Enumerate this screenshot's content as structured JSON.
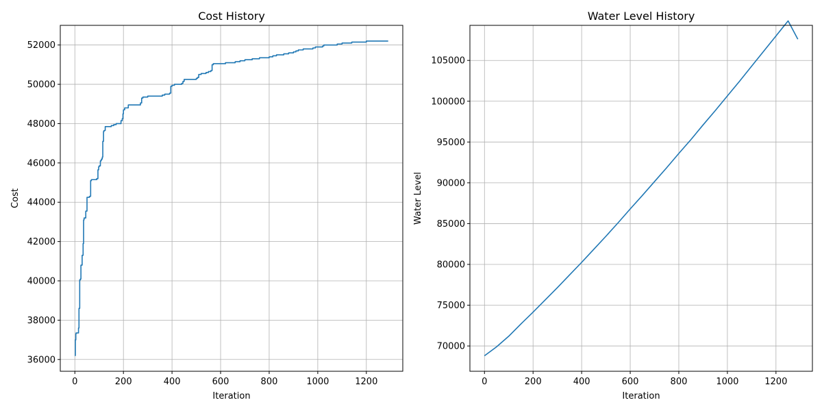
{
  "chart_data": [
    {
      "type": "line",
      "title": "Cost History",
      "xlabel": "Iteration",
      "ylabel": "Cost",
      "xlim": [
        -60,
        1350
      ],
      "ylim": [
        35400,
        53000
      ],
      "xticks": [
        0,
        200,
        400,
        600,
        800,
        1000,
        1200
      ],
      "yticks": [
        36000,
        38000,
        40000,
        42000,
        44000,
        46000,
        48000,
        50000,
        52000
      ],
      "grid": true,
      "line_color": "#1f77b4",
      "series": [
        {
          "x": [
            0,
            2,
            4,
            5,
            10,
            15,
            17,
            20,
            23,
            25,
            28,
            30,
            34,
            36,
            38,
            40,
            45,
            50,
            55,
            60,
            65,
            68,
            70,
            80,
            90,
            95,
            98,
            100,
            105,
            108,
            110,
            113,
            115,
            118,
            120,
            122,
            125,
            130,
            140,
            150,
            160,
            165,
            170,
            180,
            190,
            195,
            198,
            200,
            205,
            210,
            220,
            230,
            240,
            250,
            260,
            270,
            275,
            280,
            290,
            300,
            310,
            330,
            360,
            370,
            380,
            390,
            395,
            400,
            410,
            420,
            440,
            445,
            450,
            460,
            470,
            480,
            500,
            505,
            510,
            520,
            530,
            540,
            550,
            560,
            565,
            570,
            600,
            620,
            660,
            680,
            700,
            720,
            730,
            760,
            800,
            815,
            830,
            850,
            860,
            880,
            900,
            910,
            920,
            940,
            980,
            990,
            1020,
            1025,
            1040,
            1080,
            1100,
            1110,
            1140,
            1160,
            1190,
            1200,
            1250,
            1290
          ],
          "y": [
            36200,
            37000,
            37300,
            37350,
            37350,
            37600,
            38600,
            40050,
            40100,
            40800,
            40800,
            41300,
            41900,
            43100,
            43200,
            43200,
            43550,
            44250,
            44250,
            44300,
            45100,
            45150,
            45150,
            45150,
            45200,
            45650,
            45800,
            45850,
            46100,
            46150,
            46200,
            46300,
            47100,
            47600,
            47650,
            47650,
            47850,
            47850,
            47850,
            47900,
            47950,
            47950,
            48000,
            48000,
            48150,
            48250,
            48500,
            48700,
            48800,
            48800,
            48950,
            48950,
            48950,
            48950,
            48950,
            49050,
            49300,
            49350,
            49350,
            49400,
            49400,
            49400,
            49450,
            49500,
            49500,
            49550,
            49900,
            49950,
            50000,
            50000,
            50050,
            50150,
            50250,
            50250,
            50250,
            50250,
            50300,
            50350,
            50500,
            50550,
            50550,
            50600,
            50650,
            50700,
            51000,
            51050,
            51050,
            51100,
            51150,
            51200,
            51250,
            51250,
            51300,
            51350,
            51400,
            51450,
            51500,
            51500,
            51550,
            51600,
            51650,
            51700,
            51750,
            51800,
            51850,
            51900,
            51950,
            52000,
            52000,
            52050,
            52100,
            52100,
            52150,
            52150,
            52150,
            52200,
            52200,
            52200
          ]
        }
      ]
    },
    {
      "type": "line",
      "title": "Water Level History",
      "xlabel": "Iteration",
      "ylabel": "Water Level",
      "xlim": [
        -60,
        1350
      ],
      "ylim": [
        66900,
        109300
      ],
      "xticks": [
        0,
        200,
        400,
        600,
        800,
        1000,
        1200
      ],
      "yticks": [
        70000,
        75000,
        80000,
        85000,
        90000,
        95000,
        100000,
        105000
      ],
      "grid": true,
      "line_color": "#1f77b4",
      "series": [
        {
          "x": [
            0,
            50,
            100,
            150,
            200,
            250,
            300,
            350,
            400,
            450,
            500,
            550,
            600,
            650,
            700,
            750,
            800,
            850,
            900,
            950,
            1000,
            1050,
            1100,
            1150,
            1200,
            1250,
            1290
          ],
          "y": [
            68800,
            69900,
            71200,
            72700,
            74150,
            75650,
            77150,
            78700,
            80250,
            81850,
            83450,
            85100,
            86800,
            88450,
            90150,
            91850,
            93600,
            95300,
            97100,
            98850,
            100650,
            102450,
            104300,
            106150,
            108000,
            109850,
            107600
          ]
        }
      ]
    }
  ]
}
